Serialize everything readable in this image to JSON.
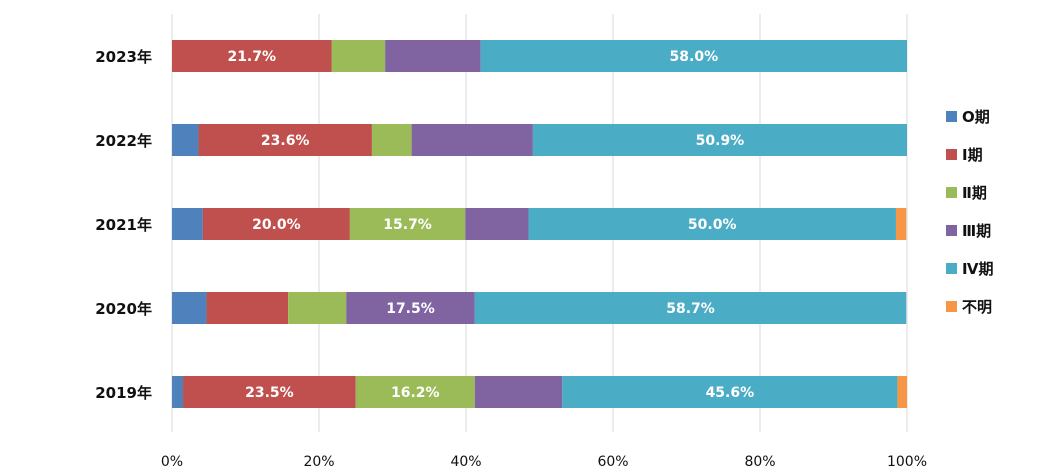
{
  "chart_data": {
    "type": "bar",
    "orientation": "horizontal",
    "stacked": "percent",
    "title": "",
    "xlabel": "",
    "ylabel": "",
    "xlim": [
      0,
      100
    ],
    "x_ticks": [
      "0%",
      "20%",
      "40%",
      "60%",
      "80%",
      "100%"
    ],
    "grid": "vertical",
    "legend": "right",
    "categories": [
      "2023年",
      "2022年",
      "2021年",
      "2020年",
      "2019年"
    ],
    "series": [
      {
        "name": "O期",
        "color": "#4f81bd",
        "values": [
          0.0,
          3.6,
          4.2,
          4.7,
          1.5
        ],
        "labels": [
          "",
          "",
          "",
          "",
          ""
        ]
      },
      {
        "name": "Ⅰ期",
        "color": "#c0504d",
        "values": [
          21.7,
          23.6,
          20.0,
          11.1,
          23.5
        ],
        "labels": [
          "21.7%",
          "23.6%",
          "20.0%",
          "",
          "23.5%"
        ]
      },
      {
        "name": "Ⅱ期",
        "color": "#9bbb59",
        "values": [
          7.3,
          5.4,
          15.7,
          7.9,
          16.2
        ],
        "labels": [
          "",
          "",
          "15.7%",
          "",
          "16.2%"
        ]
      },
      {
        "name": "Ⅲ期",
        "color": "#8064a2",
        "values": [
          13.0,
          16.5,
          8.6,
          17.5,
          11.9
        ],
        "labels": [
          "",
          "",
          "",
          "17.5%",
          ""
        ]
      },
      {
        "name": "Ⅳ期",
        "color": "#4bacc6",
        "values": [
          58.0,
          50.9,
          50.0,
          58.7,
          45.6
        ],
        "labels": [
          "58.0%",
          "50.9%",
          "50.0%",
          "58.7%",
          "45.6%"
        ]
      },
      {
        "name": "不明",
        "color": "#f79646",
        "values": [
          0.0,
          0.0,
          1.4,
          0.0,
          1.3
        ],
        "labels": [
          "",
          "",
          "",
          "",
          ""
        ]
      }
    ]
  }
}
